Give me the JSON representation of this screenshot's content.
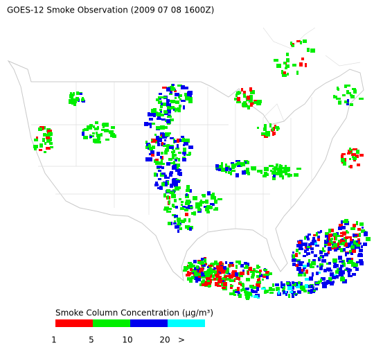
{
  "title": "GOES-12 Smoke Observation (2009 07 08  1600Z)",
  "legend": {
    "title": "Smoke Column Concentration (μg/m³)",
    "colors": [
      "#ff0000",
      "#00ee00",
      "#0000ee",
      "#00ffff"
    ],
    "labels": [
      "1",
      "5",
      "10",
      "20",
      ">"
    ]
  }
}
